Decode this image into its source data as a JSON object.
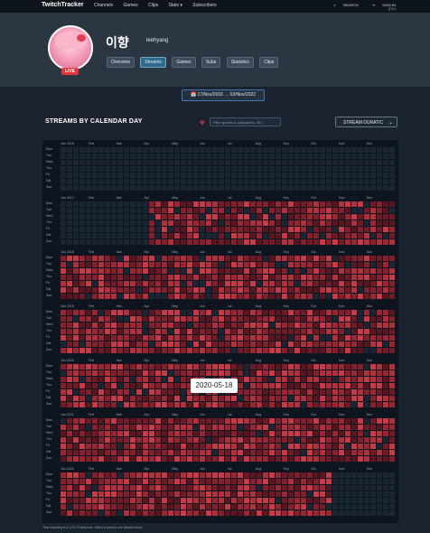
{
  "nav": {
    "brand": "TwitchTracker",
    "items": [
      "Channels",
      "Games",
      "Clips",
      "Stats ▾",
      "Subscribers"
    ],
    "search": "SEARCH",
    "signin": "SIGN IN",
    "lang": "한국어"
  },
  "channel": {
    "name": "이향",
    "login": "leehyang",
    "live": "LIVE",
    "tabs": [
      "Overview",
      "Streams",
      "Games",
      "Subs",
      "Statistics",
      "Clips"
    ],
    "active_tab": "Streams",
    "colors": {
      "accent": "#e23d55",
      "cell_empty": "#1a2633",
      "cell_active": "#8b1f2b"
    }
  },
  "date_range": "📅 17/Nov/2016 → 03/Nov/2022",
  "section": {
    "title": "STREAMS BY CALENDAR DAY",
    "filter_placeholder": "Filter games & categories: 251",
    "dropdown": "STREAM DURATIC"
  },
  "calendar": {
    "months": [
      "Jan",
      "Feb",
      "Mar",
      "Apr",
      "May",
      "Jun",
      "Jul",
      "Aug",
      "Sep",
      "Oct",
      "Nov",
      "Dec"
    ],
    "days": [
      "Mon",
      "Tue",
      "Wed",
      "Thu",
      "Fri",
      "Sat",
      "Sun"
    ],
    "years": [
      {
        "year": "2016",
        "fill_from_week": 45,
        "density": 0.05
      },
      {
        "year": "2017",
        "fill_from_week": 14,
        "density": 0.85
      },
      {
        "year": "2018",
        "fill_from_week": 0,
        "density": 0.9
      },
      {
        "year": "2019",
        "fill_from_week": 0,
        "density": 0.9
      },
      {
        "year": "2020",
        "fill_from_week": 0,
        "density": 0.9
      },
      {
        "year": "2021",
        "fill_from_week": 0,
        "density": 0.95
      },
      {
        "year": "2022",
        "fill_from_week": 0,
        "density": 0.95,
        "fill_to_week": 43
      }
    ]
  },
  "tooltip": "2020-05-18",
  "footnote": "Time matching is in UTC+0 timezone. Select a week to see detailed chart."
}
